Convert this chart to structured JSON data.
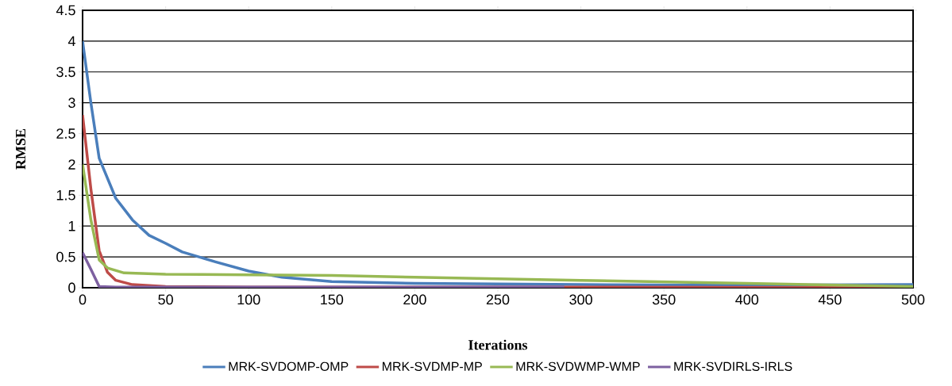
{
  "chart_data": {
    "type": "line",
    "xlabel": "Iterations",
    "ylabel": "RMSE",
    "xlim": [
      0,
      500
    ],
    "ylim": [
      0,
      4.5
    ],
    "xticks": [
      0,
      50,
      100,
      150,
      200,
      250,
      300,
      350,
      400,
      450,
      500
    ],
    "yticks": [
      0,
      {
        "value": 0.5,
        "label": "0.5"
      },
      1,
      {
        "value": 1.5,
        "label": "1.5"
      },
      2,
      {
        "value": 2.5,
        "label": "2.5"
      },
      3,
      {
        "value": 3.5,
        "label": "3.5"
      },
      4,
      {
        "value": 4.5,
        "label": "4.5"
      }
    ],
    "grid": "y",
    "legend": "bottom",
    "marker": "none",
    "line_style": "solid",
    "series": [
      {
        "name": "MRK-SVDOMP-OMP",
        "color": "#4a7ebb",
        "x": [
          0,
          5,
          10,
          20,
          30,
          40,
          50,
          60,
          80,
          100,
          120,
          150,
          200,
          300,
          400,
          500
        ],
        "values": [
          4.0,
          3.0,
          2.1,
          1.45,
          1.1,
          0.85,
          0.72,
          0.58,
          0.42,
          0.27,
          0.17,
          0.1,
          0.07,
          0.05,
          0.04,
          0.05
        ]
      },
      {
        "name": "MRK-SVDMP-MP",
        "color": "#be4b48",
        "x": [
          0,
          5,
          10,
          15,
          20,
          30,
          50,
          100,
          300,
          500
        ],
        "values": [
          2.8,
          1.6,
          0.6,
          0.25,
          0.12,
          0.05,
          0.02,
          0.01,
          0.01,
          0.0
        ]
      },
      {
        "name": "MRK-SVDWMP-WMP",
        "color": "#98b954",
        "x": [
          0,
          5,
          10,
          15,
          25,
          50,
          100,
          150,
          200,
          300,
          400,
          500
        ],
        "values": [
          2.0,
          1.1,
          0.45,
          0.32,
          0.24,
          0.22,
          0.21,
          0.2,
          0.17,
          0.12,
          0.07,
          0.02
        ]
      },
      {
        "name": "MRK-SVDIRLS-IRLS",
        "color": "#7d60a0",
        "x": [
          0,
          5,
          10,
          20,
          290
        ],
        "values": [
          0.57,
          0.3,
          0.02,
          0.01,
          0.01
        ]
      }
    ]
  }
}
